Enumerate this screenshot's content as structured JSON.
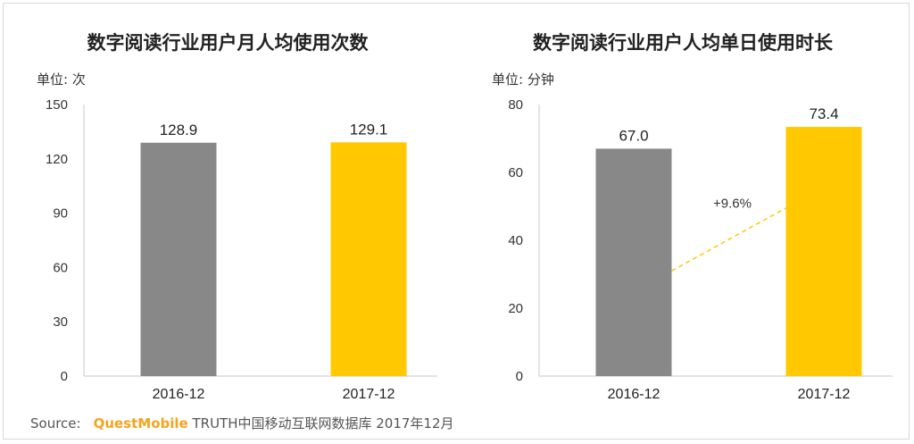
{
  "colors": {
    "bar_2016": "#888888",
    "bar_2017": "#ffc800",
    "trend": "#ffc800",
    "axis": "#c8c8c8"
  },
  "chart_data": [
    {
      "type": "bar",
      "title": "数字阅读行业用户月人均使用次数",
      "unit": "单位: 次",
      "categories": [
        "2016-12",
        "2017-12"
      ],
      "values": [
        128.9,
        129.1
      ],
      "value_labels": [
        "128.9",
        "129.1"
      ],
      "ylim": [
        0,
        150
      ],
      "yticks": [
        "0",
        "30",
        "60",
        "90",
        "120",
        "150"
      ],
      "grid": false,
      "legend": "none"
    },
    {
      "type": "bar",
      "title": "数字阅读行业用户人均单日使用时长",
      "unit": "单位: 分钟",
      "categories": [
        "2016-12",
        "2017-12"
      ],
      "values": [
        67.0,
        73.4
      ],
      "value_labels": [
        "67.0",
        "73.4"
      ],
      "ylim": [
        0,
        80
      ],
      "yticks": [
        "0",
        "20",
        "40",
        "60",
        "80"
      ],
      "annotation": "+9.6%",
      "grid": false,
      "legend": "none"
    }
  ],
  "source": {
    "prefix": "Source:",
    "brand": "QuestMobile",
    "text": " TRUTH中国移动互联网数据库 2017年12月"
  }
}
